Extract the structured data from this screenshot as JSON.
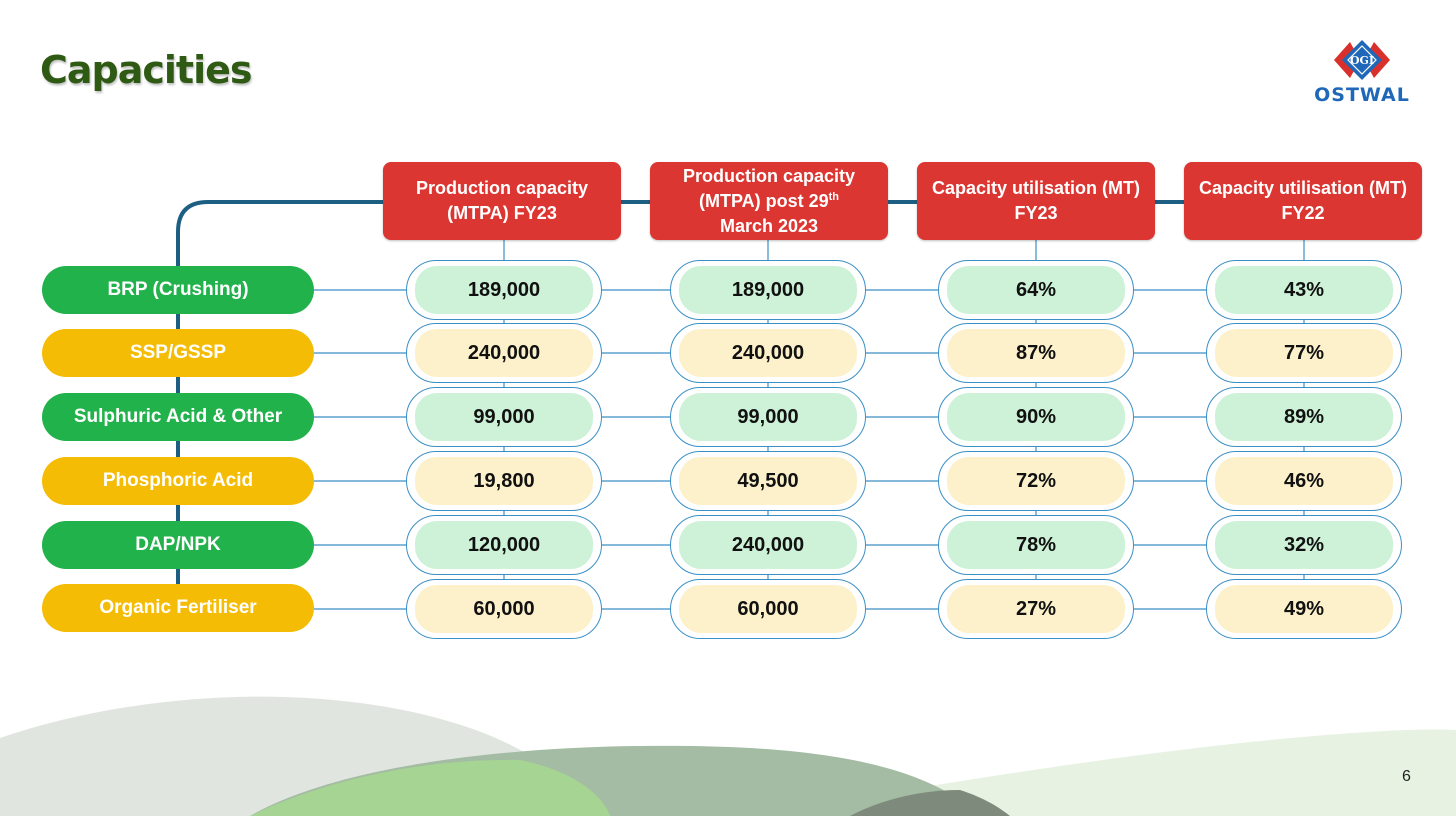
{
  "slide": {
    "title": "Capacities",
    "page_number": "6"
  },
  "logo": {
    "mark_text": "OGI",
    "wordmark": "OSTWAL",
    "colors": {
      "red": "#d9302b",
      "blue": "#1f67b8"
    }
  },
  "colors": {
    "header_red": "#dc3632",
    "label_green": "#22b24b",
    "label_yellow": "#f5bc05",
    "cell_green": "#cdf2d8",
    "cell_yellow": "#fdf1cb",
    "connector_dark": "#1d5f83",
    "connector_light": "#3a8fc6",
    "title_green": "#2e5a14"
  },
  "columns": [
    {
      "label": "Production capacity (MTPA) FY23"
    },
    {
      "label_main": "Production capacity (MTPA) post 29",
      "label_sup": "th",
      "label_end": "March 2023"
    },
    {
      "label": "Capacity  utilisation (MT) FY23"
    },
    {
      "label": "Capacity  utilisation (MT) FY22"
    }
  ],
  "rows": [
    {
      "label": "BRP (Crushing)",
      "tone": "green",
      "values": [
        "189,000",
        "189,000",
        "64%",
        "43%"
      ]
    },
    {
      "label": "SSP/GSSP",
      "tone": "yellow",
      "values": [
        "240,000",
        "240,000",
        "87%",
        "77%"
      ]
    },
    {
      "label": "Sulphuric Acid & Other",
      "tone": "green",
      "values": [
        "99,000",
        "99,000",
        "90%",
        "89%"
      ]
    },
    {
      "label": "Phosphoric Acid",
      "tone": "yellow",
      "values": [
        "19,800",
        "49,500",
        "72%",
        "46%"
      ]
    },
    {
      "label": "DAP/NPK",
      "tone": "green",
      "values": [
        "120,000",
        "240,000",
        "78%",
        "32%"
      ]
    },
    {
      "label": "Organic Fertiliser",
      "tone": "yellow",
      "values": [
        "60,000",
        "60,000",
        "27%",
        "49%"
      ]
    }
  ]
}
